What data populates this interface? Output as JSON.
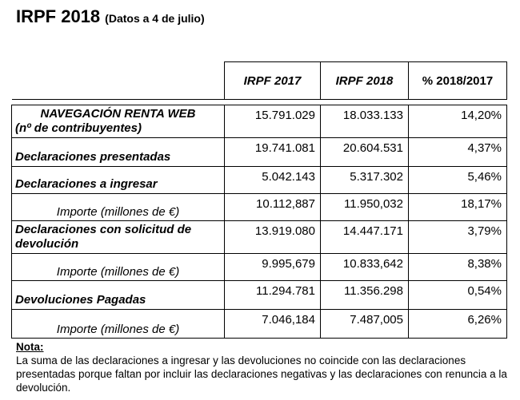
{
  "title": {
    "main": "IRPF 2018",
    "sub": "(Datos a 4 de julio)"
  },
  "table": {
    "headers": [
      "IRPF 2017",
      "IRPF 2018",
      "% 2018/2017"
    ],
    "rows": [
      {
        "label": "NAVEGACIÓN RENTA WEB",
        "sublabel": "(nº de contribuyentes)",
        "v2017": "15.791.029",
        "v2018": "18.033.133",
        "pct": "14,20%"
      },
      {
        "label": "Declaraciones presentadas",
        "v2017": "19.741.081",
        "v2018": "20.604.531",
        "pct": "4,37%"
      },
      {
        "label": "Declaraciones a ingresar",
        "v2017": "5.042.143",
        "v2018": "5.317.302",
        "pct": "5,46%"
      },
      {
        "label": "Importe (millones de €)",
        "v2017": "10.112,887",
        "v2018": "11.950,032",
        "pct": "18,17%"
      },
      {
        "label": "Declaraciones con solicitud de devolución",
        "v2017": "13.919.080",
        "v2018": "14.447.171",
        "pct": "3,79%"
      },
      {
        "label": "Importe (millones de €)",
        "v2017": "9.995,679",
        "v2018": "10.833,642",
        "pct": "8,38%"
      },
      {
        "label": "Devoluciones Pagadas",
        "v2017": "11.294.781",
        "v2018": "11.356.298",
        "pct": "0,54%"
      },
      {
        "label": "Importe (millones de €)",
        "v2017": "7.046,184",
        "v2018": "7.487,005",
        "pct": "6,26%"
      }
    ]
  },
  "nota": {
    "title": "Nota:",
    "text": "La suma de las declaraciones a ingresar y las devoluciones no coincide con las declaraciones presentadas porque faltan por incluir las declaraciones negativas y las declaraciones con renuncia a la devolución."
  }
}
